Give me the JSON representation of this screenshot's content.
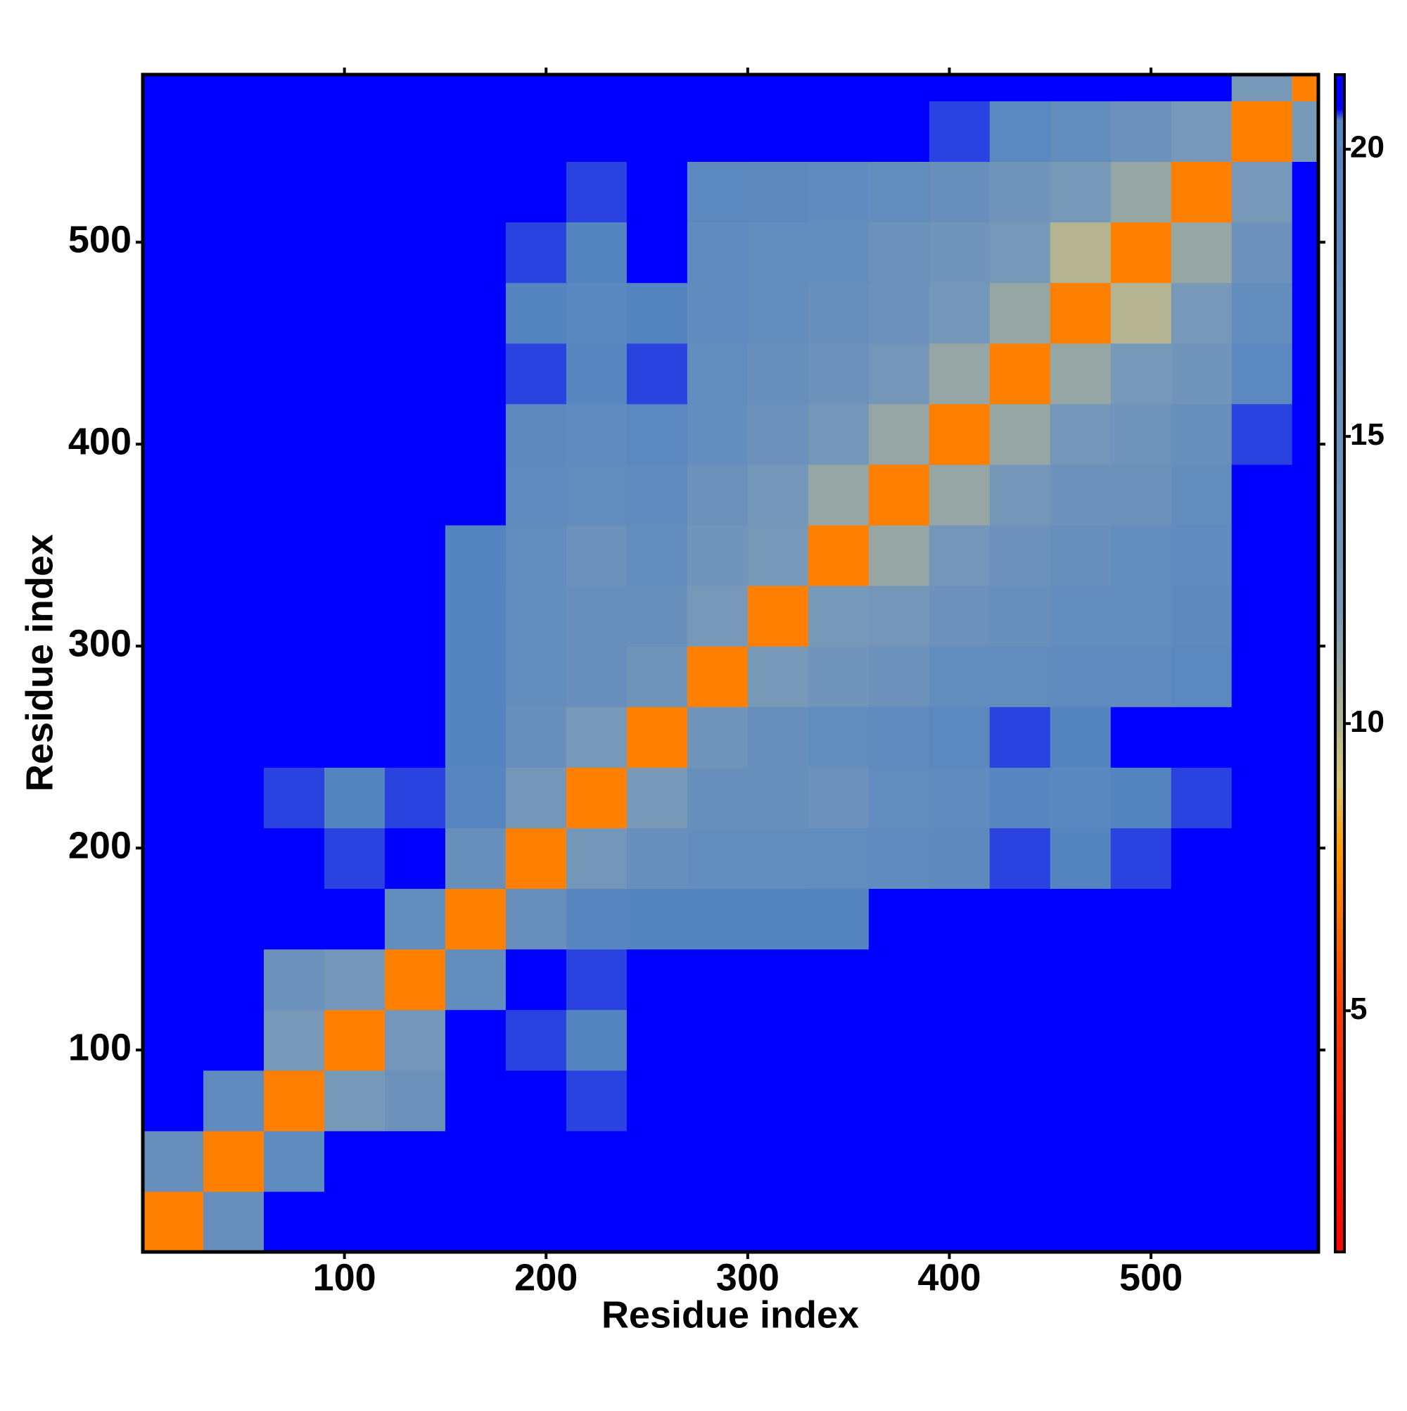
{
  "chart_data": {
    "type": "heatmap",
    "xlabel": "Residue index",
    "ylabel": "Residue index",
    "xlim": [
      0,
      583
    ],
    "ylim": [
      0,
      583
    ],
    "xticks": [
      100,
      200,
      300,
      400,
      500
    ],
    "yticks": [
      100,
      200,
      300,
      400,
      500
    ],
    "xbins": [
      0,
      30,
      60,
      90,
      120,
      150,
      180,
      210,
      240,
      270,
      300,
      330,
      360,
      390,
      420,
      450,
      480,
      510,
      540,
      570,
      583
    ],
    "ybins": [
      0,
      30,
      60,
      90,
      120,
      150,
      180,
      210,
      240,
      270,
      300,
      330,
      360,
      390,
      420,
      450,
      480,
      510,
      540,
      570,
      583
    ],
    "zlim": [
      0.8,
      21.3
    ],
    "zticks": [
      5,
      10,
      15,
      20
    ],
    "colorscale": [
      [
        0.8,
        "#ff0000"
      ],
      [
        5,
        "#ff3a00"
      ],
      [
        7.8,
        "#ff9a00"
      ],
      [
        9,
        "#d8c878"
      ],
      [
        10,
        "#b4b492"
      ],
      [
        12,
        "#7898b8"
      ],
      [
        20.5,
        "#5585c0"
      ],
      [
        20.7,
        "#0000ff"
      ],
      [
        21.3,
        "#0000ff"
      ]
    ],
    "z": [
      [
        7,
        16,
        21.3,
        21.3,
        21.3,
        21.3,
        21.3,
        21.3,
        21.3,
        21.3,
        21.3,
        21.3,
        21.3,
        21.3,
        21.3,
        21.3,
        21.3,
        21.3,
        21.3,
        21.3
      ],
      [
        16,
        7,
        18,
        21.3,
        21.3,
        21.3,
        21.3,
        21.3,
        21.3,
        21.3,
        21.3,
        21.3,
        21.3,
        21.3,
        21.3,
        21.3,
        21.3,
        21.3,
        21.3,
        21.3
      ],
      [
        21.3,
        18,
        7,
        12,
        15,
        21,
        20.8,
        20.6,
        21,
        21,
        21,
        21,
        21.3,
        21.3,
        21.3,
        21.3,
        21.3,
        21.3,
        21.3,
        21.3
      ],
      [
        21.3,
        21.3,
        12,
        7,
        13,
        20.8,
        20.6,
        20.5,
        20.8,
        20.9,
        20.9,
        20.9,
        21.3,
        21.3,
        21.3,
        21.3,
        21.3,
        21.3,
        21.3,
        21.3
      ],
      [
        21.3,
        21.3,
        15,
        13,
        7,
        17,
        20.7,
        20.6,
        20.9,
        21,
        21,
        21,
        21.3,
        21.3,
        21.3,
        21.3,
        21.3,
        21.3,
        21.3,
        21.3
      ],
      [
        21.3,
        21.3,
        21,
        20.8,
        17,
        7,
        16,
        20,
        20.5,
        20.5,
        20.5,
        20.5,
        21,
        21,
        21,
        21,
        21,
        21,
        21,
        21.3
      ],
      [
        21.3,
        21.3,
        20.8,
        20.6,
        20.7,
        16,
        7,
        13,
        16,
        17,
        17,
        17.5,
        18,
        18.5,
        20.6,
        20.5,
        20.6,
        20.8,
        21.3,
        21.3
      ],
      [
        21.3,
        21.3,
        20.6,
        20.5,
        20.6,
        20,
        13,
        7,
        12,
        16,
        16,
        15,
        17.5,
        18,
        20,
        19.5,
        20.5,
        20.6,
        21.3,
        21.3
      ],
      [
        21.3,
        21.3,
        21,
        20.8,
        20.9,
        20.5,
        16,
        12,
        7,
        14,
        16,
        17,
        18,
        19,
        20.6,
        20.5,
        20.7,
        21,
        21.3,
        21.3
      ],
      [
        21.3,
        21.3,
        21,
        20.9,
        21,
        20.5,
        17,
        16,
        14,
        7,
        12,
        14,
        15,
        17,
        17.5,
        18,
        18,
        19,
        21,
        21.3
      ],
      [
        21.3,
        21.3,
        21,
        20.9,
        21,
        20.5,
        17,
        16,
        16,
        12,
        7,
        12,
        13,
        15,
        16,
        17,
        17,
        18.5,
        21,
        21.3
      ],
      [
        21.3,
        21.3,
        21,
        20.9,
        21,
        20.5,
        17.5,
        15,
        17,
        14,
        12,
        7,
        11,
        13,
        15,
        16,
        17,
        18,
        21,
        21.3
      ],
      [
        21.3,
        21.3,
        21.3,
        21.3,
        21.3,
        21,
        18,
        17.5,
        18,
        15,
        13,
        11,
        7,
        11,
        13,
        15,
        15,
        17,
        20.8,
        21.3
      ],
      [
        21.3,
        21.3,
        21.3,
        21.3,
        21.3,
        21,
        18.5,
        18,
        19,
        17,
        15,
        13,
        11,
        7,
        11,
        13,
        14,
        16,
        20.6,
        21.3
      ],
      [
        21.3,
        21.3,
        21.3,
        21.3,
        21.3,
        21,
        20.6,
        20,
        20.6,
        17.5,
        16,
        15,
        13,
        11,
        7,
        11,
        12,
        14,
        19,
        21.3
      ],
      [
        21.3,
        21.3,
        21.3,
        21.3,
        21.3,
        21,
        20.5,
        19.5,
        20.5,
        18,
        17,
        16,
        15,
        13,
        11,
        7,
        10,
        12,
        17,
        21.3
      ],
      [
        21.3,
        21.3,
        21.3,
        21.3,
        21.3,
        21,
        20.6,
        20.5,
        20.7,
        18,
        17,
        17,
        15,
        14,
        12,
        10,
        7,
        11,
        15,
        21.3
      ],
      [
        21.3,
        21.3,
        21.3,
        21.3,
        21.3,
        21,
        20.8,
        20.6,
        21,
        19,
        18.5,
        18,
        17,
        16,
        14,
        12,
        11,
        7,
        12,
        20.8
      ],
      [
        21.3,
        21.3,
        21.3,
        21.3,
        21.3,
        21,
        21.3,
        21.3,
        21.3,
        21,
        21,
        21,
        20.8,
        20.6,
        19,
        17,
        15,
        12,
        7,
        12
      ],
      [
        21.3,
        21.3,
        21.3,
        21.3,
        21.3,
        21.3,
        21.3,
        21.3,
        21.3,
        21.3,
        21.3,
        21.3,
        21.3,
        21.3,
        21.3,
        21.3,
        21.3,
        20.8,
        12,
        7
      ]
    ]
  }
}
